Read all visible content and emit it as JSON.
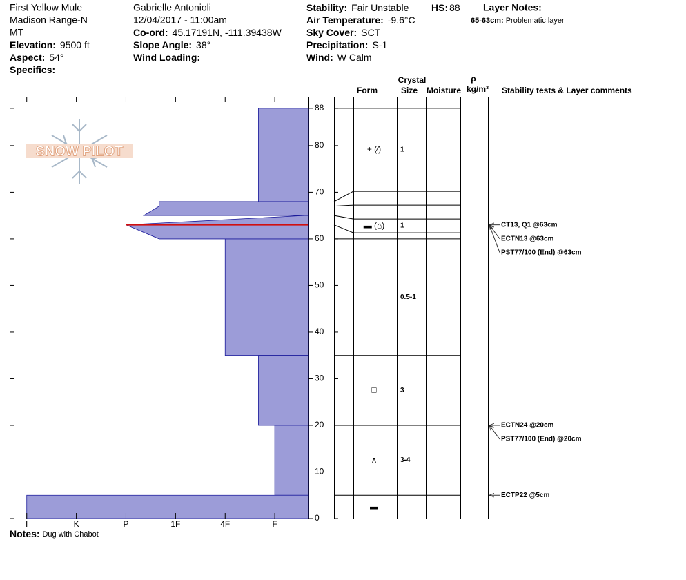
{
  "header": {
    "columns": [
      [
        "First Yellow Mule",
        "Madison Range-N",
        "MT",
        {
          "label": "Elevation:",
          "value": "9500 ft"
        },
        {
          "label": "Aspect:",
          "value": "54°"
        },
        {
          "label": "Specifics:"
        }
      ],
      [
        "Gabrielle Antonioli",
        "12/04/2017 - 11:00am",
        {
          "label": "Co-ord:",
          "value": "45.17191N, -111.39438W"
        },
        {
          "label": "Slope Angle:",
          "value": "38°"
        },
        {
          "label": "Wind Loading:"
        }
      ],
      [
        {
          "label": "Stability:",
          "value": "Fair Unstable"
        },
        {
          "label": "Air Temperature:",
          "value": "-9.6°C"
        },
        {
          "label": "Sky Cover:",
          "value": "SCT"
        },
        {
          "label": "Precipitation:",
          "value": "S-1"
        },
        {
          "label": "Wind:",
          "value": "W Calm"
        }
      ]
    ],
    "hs": {
      "label": "HS:",
      "value": 88
    },
    "layer_notes_title": "Layer Notes:",
    "layer_notes": [
      {
        "range": "65-63cm:",
        "text": "Problematic layer"
      }
    ]
  },
  "logo": "SNOW PILOT",
  "table_headers": {
    "crystal": "Crystal",
    "form": "Form",
    "size": "Size",
    "moisture": "Moisture",
    "rho": "ρ",
    "density": "kg/m³",
    "comments": "Stability tests & Layer comments"
  },
  "notes": {
    "label": "Notes:",
    "text": "Dug with Chabot"
  },
  "chart_data": {
    "type": "profile",
    "ylim": [
      0,
      90.5
    ],
    "yticks": [
      0,
      10,
      20,
      30,
      40,
      50,
      60,
      70,
      80,
      88
    ],
    "xlim": [
      6.33,
      0.32
    ],
    "xticks": [
      {
        "value": 6,
        "label": "I"
      },
      {
        "value": 5,
        "label": "K"
      },
      {
        "value": 4,
        "label": "P"
      },
      {
        "value": 3,
        "label": "1F"
      },
      {
        "value": 2,
        "label": "4F"
      },
      {
        "value": 1,
        "label": "F"
      }
    ],
    "color": "#9c9cd8",
    "edge_color": "#1a1a9a",
    "problem_layer": 63,
    "problem_color": "#d01010",
    "layers": [
      {
        "top": 88,
        "bottom": 68,
        "hardness_top": 1.33,
        "hardness_bottom": 1.33,
        "form": "+ (⁄)",
        "size": "1"
      },
      {
        "top": 68,
        "bottom": 67,
        "hardness_top": 3.33,
        "hardness_bottom": 3.33
      },
      {
        "top": 67,
        "bottom": 65,
        "hardness_top": 3.33,
        "hardness_bottom": 3.64
      },
      {
        "top": 65,
        "bottom": 63,
        "hardness_top": 0.4,
        "hardness_bottom": 4,
        "form": "▬ (⌂)",
        "size": "1"
      },
      {
        "top": 63,
        "bottom": 60,
        "hardness_top": 4,
        "hardness_bottom": 3.33
      },
      {
        "top": 60,
        "bottom": 35,
        "hardness_top": 2,
        "hardness_bottom": 2,
        "size": "0.5-1"
      },
      {
        "top": 35,
        "bottom": 20,
        "hardness_top": 1.33,
        "hardness_bottom": 1.33,
        "form": "□",
        "size": "3"
      },
      {
        "top": 20,
        "bottom": 5,
        "hardness_top": 1,
        "hardness_bottom": 1,
        "form": "∧",
        "size": "3-4"
      },
      {
        "top": 5,
        "bottom": 0,
        "hardness_top": 6,
        "hardness_bottom": 6,
        "form": "▬"
      }
    ],
    "tests": [
      {
        "text": "CT13, Q1 @63cm",
        "depth": 63
      },
      {
        "text": "ECTN13 @63cm",
        "depth": 63
      },
      {
        "text": "PST77/100 (End) @63cm",
        "depth": 63
      },
      {
        "text": "ECTN24 @20cm",
        "depth": 20
      },
      {
        "text": "PST77/100 (End) @20cm",
        "depth": 20
      },
      {
        "text": "ECTP22 @5cm",
        "depth": 5
      }
    ]
  }
}
